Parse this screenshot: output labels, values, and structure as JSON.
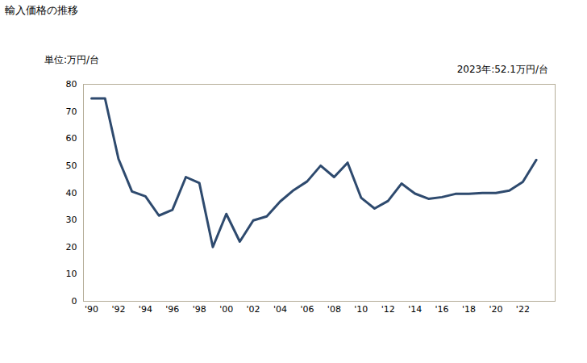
{
  "chart_data": {
    "type": "line",
    "title": "輸入価格の推移",
    "ylabel": "単位:万円/台",
    "annotation": "2023年:52.1万円/台",
    "x": [
      1990,
      1991,
      1992,
      1993,
      1994,
      1995,
      1996,
      1997,
      1998,
      1999,
      2000,
      2001,
      2002,
      2003,
      2004,
      2005,
      2006,
      2007,
      2008,
      2009,
      2010,
      2011,
      2012,
      2013,
      2014,
      2015,
      2016,
      2017,
      2018,
      2019,
      2020,
      2021,
      2022,
      2023
    ],
    "values": [
      74.8,
      74.8,
      52.5,
      40.5,
      38.7,
      31.6,
      33.7,
      45.8,
      43.6,
      20.0,
      32.2,
      22.0,
      29.8,
      31.3,
      36.8,
      41.0,
      44.2,
      50.0,
      45.8,
      51.1,
      38.2,
      34.2,
      37.0,
      43.4,
      39.7,
      37.8,
      38.4,
      39.6,
      39.6,
      39.9,
      39.9,
      40.8,
      44.0,
      52.1
    ],
    "color": "#2e4a6e",
    "xlim": [
      1989.4,
      2024.4
    ],
    "xticks": [
      {
        "value": 1990,
        "label": "'90"
      },
      {
        "value": 1992,
        "label": "'92"
      },
      {
        "value": 1994,
        "label": "'94"
      },
      {
        "value": 1996,
        "label": "'96"
      },
      {
        "value": 1998,
        "label": "'98"
      },
      {
        "value": 2000,
        "label": "'00"
      },
      {
        "value": 2002,
        "label": "'02"
      },
      {
        "value": 2004,
        "label": "'04"
      },
      {
        "value": 2006,
        "label": "'06"
      },
      {
        "value": 2008,
        "label": "'08"
      },
      {
        "value": 2010,
        "label": "'10"
      },
      {
        "value": 2012,
        "label": "'12"
      },
      {
        "value": 2014,
        "label": "'14"
      },
      {
        "value": 2016,
        "label": "'16"
      },
      {
        "value": 2018,
        "label": "'18"
      },
      {
        "value": 2020,
        "label": "'20"
      },
      {
        "value": 2022,
        "label": "'22"
      }
    ],
    "ylim": [
      0,
      80
    ],
    "yticks": [
      0,
      10,
      20,
      30,
      40,
      50,
      60,
      70,
      80
    ],
    "grid": false
  }
}
